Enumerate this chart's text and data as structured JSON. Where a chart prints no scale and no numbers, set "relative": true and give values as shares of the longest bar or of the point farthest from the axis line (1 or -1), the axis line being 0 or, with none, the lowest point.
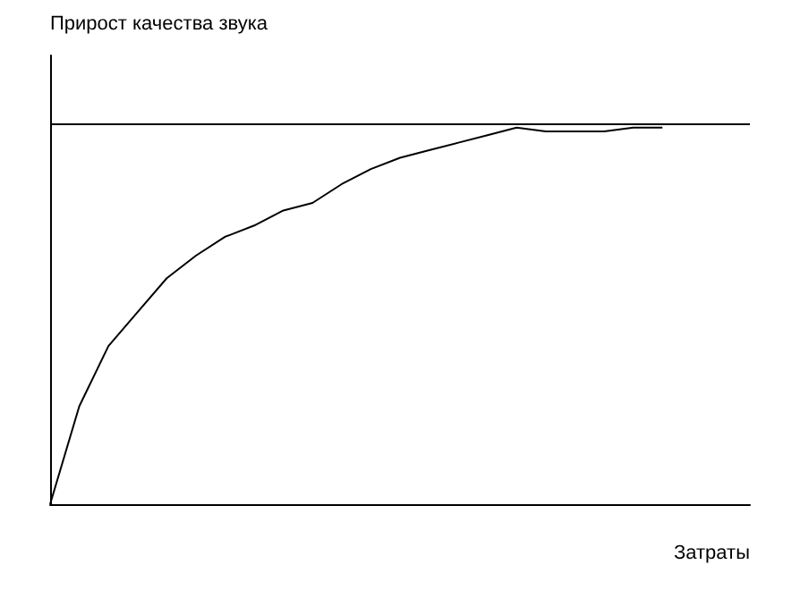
{
  "chart_data": {
    "type": "line",
    "relative": true,
    "ylabel": "Прирост качества звука",
    "xlabel": "Затраты",
    "categories": [
      null,
      null,
      null,
      null,
      null,
      null,
      null,
      null,
      null,
      null,
      null,
      null,
      null,
      null,
      null,
      null,
      null,
      null,
      null,
      null,
      null,
      null,
      null,
      null,
      null
    ],
    "series": [
      {
        "color": "#000000",
        "values": [
          0,
          0.26,
          0.42,
          0.51,
          0.6,
          0.66,
          0.71,
          0.74,
          0.78,
          0.8,
          0.85,
          0.89,
          0.92,
          0.94,
          0.96,
          0.98,
          1,
          0.99,
          0.99,
          0.99,
          1,
          1,
          null,
          null,
          null
        ]
      }
    ],
    "ref_lines": [
      {
        "axis": "y",
        "value": 1.01,
        "color": "#000000",
        "line_style": "solid"
      }
    ],
    "marker": "none",
    "grid": false
  }
}
